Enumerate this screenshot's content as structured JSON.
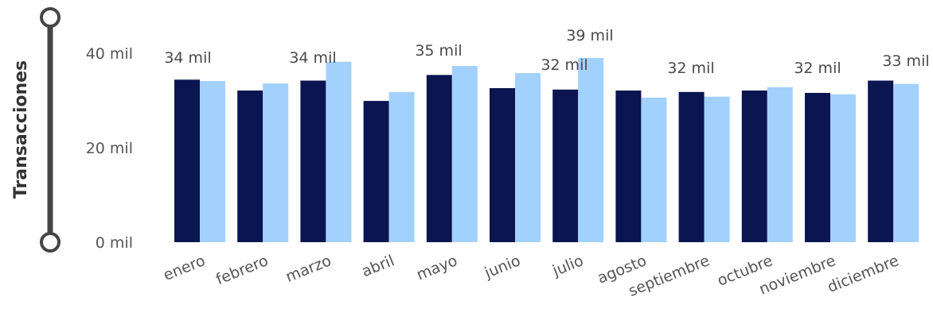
{
  "chart_data": {
    "type": "bar",
    "ylabel": "Transacciones",
    "ylim": [
      0,
      40000
    ],
    "yticks": [
      {
        "value": 0,
        "label": "0 mil"
      },
      {
        "value": 20000,
        "label": "20 mil"
      },
      {
        "value": 40000,
        "label": "40 mil"
      }
    ],
    "categories": [
      "enero",
      "febrero",
      "marzo",
      "abril",
      "mayo",
      "junio",
      "julio",
      "agosto",
      "septiembre",
      "octubre",
      "noviembre",
      "diciembre"
    ],
    "series": [
      {
        "color": "#0b1550",
        "values": [
          34400,
          32100,
          34200,
          29900,
          35400,
          32600,
          32300,
          32100,
          31800,
          32100,
          31600,
          34200
        ]
      },
      {
        "color": "#a3d1fe",
        "values": [
          34100,
          33600,
          38200,
          31800,
          37300,
          35800,
          39000,
          30600,
          30800,
          32800,
          31300,
          33500
        ]
      }
    ],
    "data_labels": [
      "34 mil",
      "34 mil",
      "35 mil",
      "32 mil",
      "39 mil",
      "32 mil",
      "32 mil",
      "33 mil"
    ],
    "grid": false
  }
}
